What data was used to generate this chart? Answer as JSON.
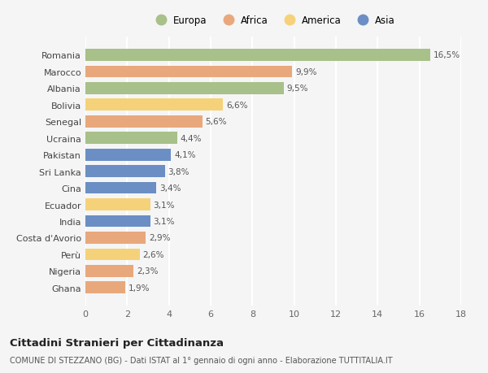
{
  "countries": [
    "Romania",
    "Marocco",
    "Albania",
    "Bolivia",
    "Senegal",
    "Ucraina",
    "Pakistan",
    "Sri Lanka",
    "Cina",
    "Ecuador",
    "India",
    "Costa d'Avorio",
    "Perù",
    "Nigeria",
    "Ghana"
  ],
  "values": [
    16.5,
    9.9,
    9.5,
    6.6,
    5.6,
    4.4,
    4.1,
    3.8,
    3.4,
    3.1,
    3.1,
    2.9,
    2.6,
    2.3,
    1.9
  ],
  "labels": [
    "16,5%",
    "9,9%",
    "9,5%",
    "6,6%",
    "5,6%",
    "4,4%",
    "4,1%",
    "3,8%",
    "3,4%",
    "3,1%",
    "3,1%",
    "2,9%",
    "2,6%",
    "2,3%",
    "1,9%"
  ],
  "continents": [
    "Europa",
    "Africa",
    "Europa",
    "America",
    "Africa",
    "Europa",
    "Asia",
    "Asia",
    "Asia",
    "America",
    "Asia",
    "Africa",
    "America",
    "Africa",
    "Africa"
  ],
  "colors": {
    "Europa": "#a8c08a",
    "Africa": "#e8a87c",
    "America": "#f5d27a",
    "Asia": "#6b8fc4"
  },
  "legend_order": [
    "Europa",
    "Africa",
    "America",
    "Asia"
  ],
  "title": "Cittadini Stranieri per Cittadinanza",
  "subtitle": "COMUNE DI STEZZANO (BG) - Dati ISTAT al 1° gennaio di ogni anno - Elaborazione TUTTITALIA.IT",
  "xlim": [
    0,
    18
  ],
  "xticks": [
    0,
    2,
    4,
    6,
    8,
    10,
    12,
    14,
    16,
    18
  ],
  "background_color": "#f5f5f5",
  "grid_color": "#ffffff"
}
